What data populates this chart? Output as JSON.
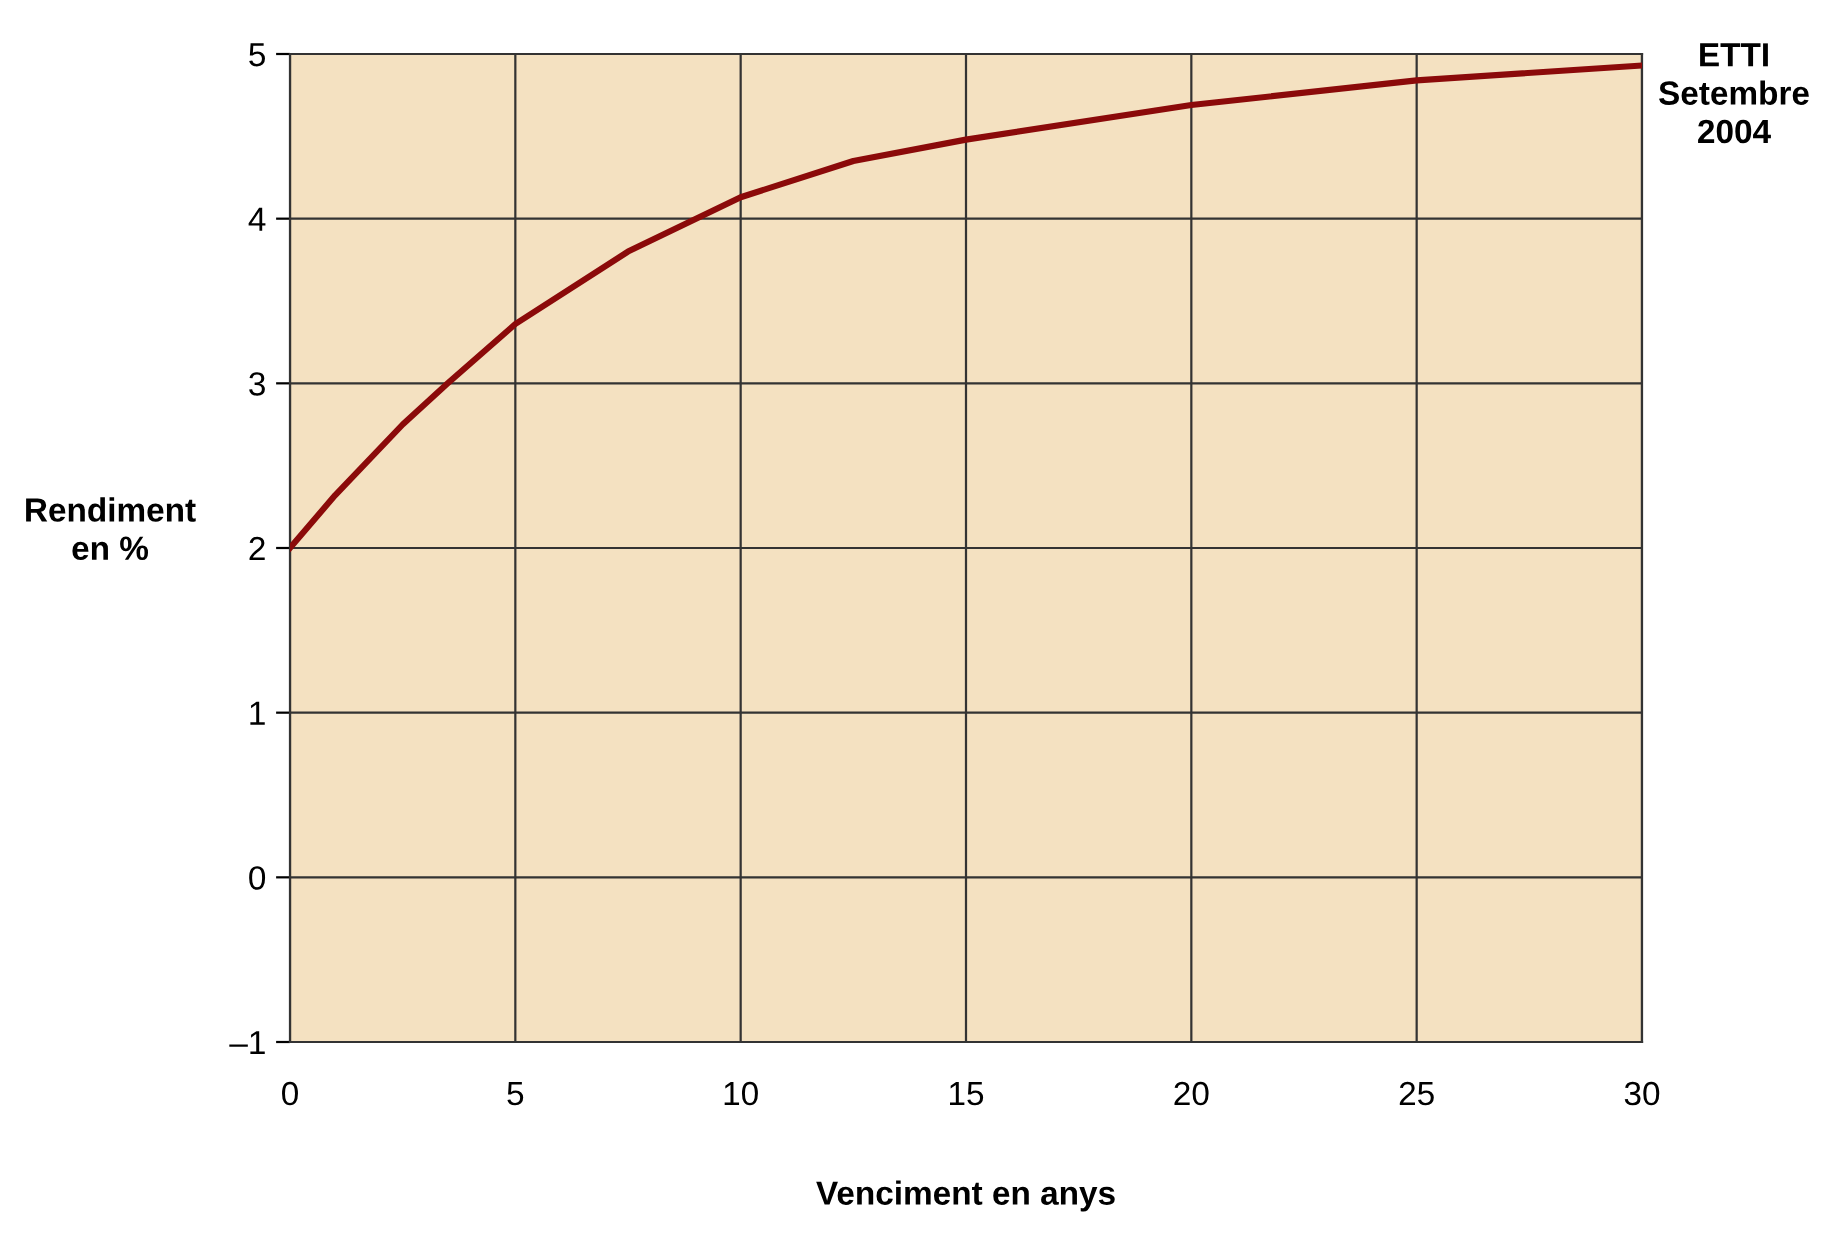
{
  "chart_data": {
    "type": "line",
    "title": "ETTI\nSetembre\n2004",
    "xlabel": "Venciment en anys",
    "ylabel": "Rendiment\nen %",
    "x": [
      0,
      1,
      2.5,
      3.5,
      5,
      7.5,
      10,
      12.5,
      15,
      20,
      25,
      30
    ],
    "series": [
      {
        "color": "#8b0a0a",
        "values": [
          2.0,
          2.32,
          2.75,
          3.0,
          3.36,
          3.8,
          4.13,
          4.35,
          4.48,
          4.69,
          4.84,
          4.93
        ]
      }
    ],
    "xlim": [
      0,
      30
    ],
    "ylim": [
      -1,
      5
    ],
    "xticks": [
      0,
      5,
      10,
      15,
      20,
      25,
      30
    ],
    "yticks": [
      {
        "value": -1,
        "label": "–1"
      },
      0,
      1,
      2,
      3,
      4,
      5
    ],
    "grid": true,
    "marker": "none",
    "line_style": "solid"
  }
}
